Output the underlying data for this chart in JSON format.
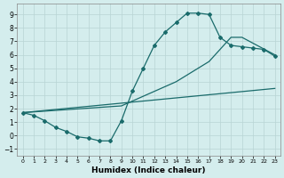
{
  "xlabel": "Humidex (Indice chaleur)",
  "background_color": "#d4eded",
  "grid_color": "#b8d4d4",
  "line_color": "#1a6b6b",
  "xlim": [
    -0.5,
    23.5
  ],
  "ylim": [
    -1.5,
    9.8
  ],
  "xticks": [
    0,
    1,
    2,
    3,
    4,
    5,
    6,
    7,
    8,
    9,
    10,
    11,
    12,
    13,
    14,
    15,
    16,
    17,
    18,
    19,
    20,
    21,
    22,
    23
  ],
  "yticks": [
    -1,
    0,
    1,
    2,
    3,
    4,
    5,
    6,
    7,
    8,
    9
  ],
  "curve1_x": [
    0,
    1,
    2,
    3,
    4,
    5,
    6,
    7,
    8,
    9,
    10,
    11,
    12,
    13,
    14,
    15,
    16,
    17,
    18,
    19,
    20,
    21,
    22,
    23
  ],
  "curve1_y": [
    1.7,
    1.5,
    1.1,
    0.6,
    0.3,
    -0.1,
    -0.2,
    -0.4,
    -0.4,
    1.1,
    3.3,
    5.0,
    6.7,
    7.7,
    8.4,
    9.1,
    9.1,
    9.0,
    7.3,
    6.7,
    6.6,
    6.5,
    6.4,
    5.9
  ],
  "curve2_x": [
    0,
    9,
    14,
    17,
    19,
    20,
    23
  ],
  "curve2_y": [
    1.7,
    2.2,
    4.0,
    5.5,
    7.3,
    7.3,
    6.0
  ],
  "curve3_x": [
    0,
    23
  ],
  "curve3_y": [
    1.7,
    3.5
  ]
}
